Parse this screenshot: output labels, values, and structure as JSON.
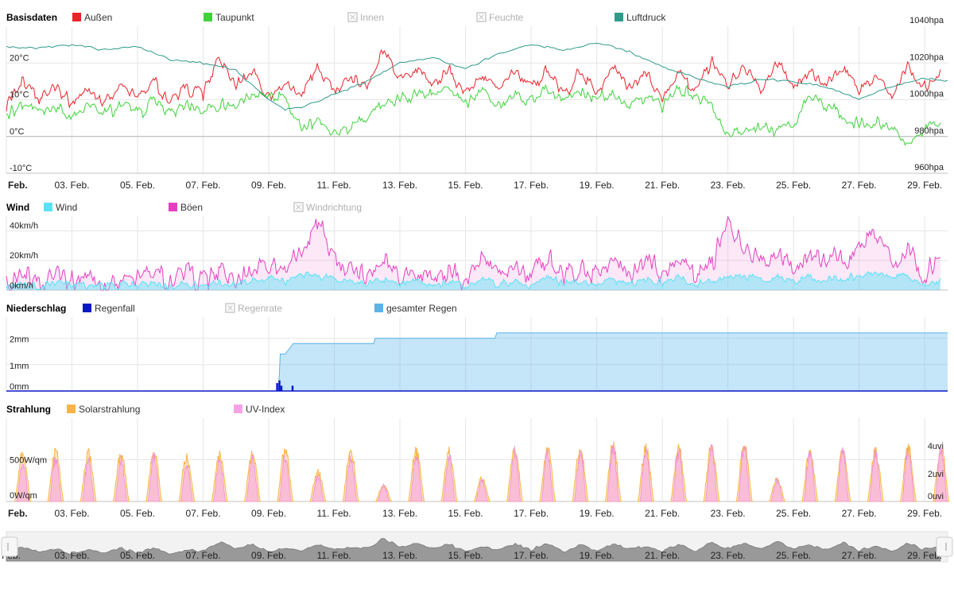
{
  "colors": {
    "aussen": "#e8232a",
    "taupunkt": "#3fd23b",
    "luftdruck": "#2f9a8a",
    "wind": "#5be3f5",
    "boeen": "#e43fc1",
    "regenfall": "#0a17c9",
    "gesamt": "#5ab4ea",
    "solar": "#f9b446",
    "uv": "#f6a3e6",
    "disabled": "#c8c8c8",
    "grid": "#e6e6e6"
  },
  "x_axis": {
    "ticks": [
      "Feb.",
      "03. Feb.",
      "05. Feb.",
      "07. Feb.",
      "09. Feb.",
      "11. Feb.",
      "13. Feb.",
      "15. Feb.",
      "17. Feb.",
      "19. Feb.",
      "21. Feb.",
      "23. Feb.",
      "25. Feb.",
      "27. Feb.",
      "29. Feb."
    ],
    "start_day": 1,
    "end_day": 29.7
  },
  "chart_data": [
    {
      "type": "line",
      "title": "Basisdaten",
      "legend": [
        {
          "name": "Außen",
          "color": "#e8232a",
          "enabled": true
        },
        {
          "name": "Taupunkt",
          "color": "#3fd23b",
          "enabled": true
        },
        {
          "name": "Innen",
          "enabled": false
        },
        {
          "name": "Feuchte",
          "enabled": false
        },
        {
          "name": "Luftdruck",
          "color": "#2f9a8a",
          "enabled": true
        }
      ],
      "y_left": {
        "ticks": [
          -10,
          0,
          10,
          20
        ],
        "labels": [
          "-10°C",
          "0°C",
          "10°C",
          "20°C"
        ],
        "range": [
          -10,
          30
        ]
      },
      "y_right": {
        "ticks": [
          960,
          980,
          1000,
          1020,
          1040
        ],
        "labels": [
          "960hpa",
          "980hpa",
          "1000hpa",
          "1020hpa",
          "1040hpa"
        ],
        "range": [
          960,
          1040
        ]
      },
      "series": [
        {
          "name": "Außen",
          "axis": "left",
          "color": "#e8232a",
          "x": [
            1,
            1.5,
            2,
            2.5,
            3,
            3.5,
            4,
            4.5,
            5,
            5.5,
            6,
            6.5,
            7,
            7.5,
            8,
            8.5,
            9,
            9.5,
            10,
            10.5,
            11,
            11.5,
            12,
            12.5,
            13,
            13.5,
            14,
            14.5,
            15,
            15.5,
            16,
            16.5,
            17,
            17.5,
            18,
            18.5,
            19,
            19.5,
            20,
            20.5,
            21,
            21.5,
            22,
            22.5,
            23,
            23.5,
            24,
            24.5,
            25,
            25.5,
            26,
            26.5,
            27,
            27.5,
            28,
            28.5,
            29,
            29.5
          ],
          "y": [
            9,
            15,
            11,
            14,
            9,
            13,
            10,
            14,
            10,
            15,
            9,
            13,
            12,
            21,
            14,
            18,
            11,
            14,
            12,
            18,
            13,
            16,
            14,
            24,
            16,
            19,
            14,
            18,
            12,
            16,
            13,
            18,
            13,
            19,
            11,
            18,
            12,
            19,
            13,
            17,
            11,
            18,
            12,
            20,
            14,
            19,
            13,
            20,
            14,
            18,
            13,
            20,
            12,
            16,
            12,
            19,
            13,
            17
          ]
        },
        {
          "name": "Taupunkt",
          "axis": "left",
          "color": "#3fd23b",
          "x": [
            1,
            1.5,
            2,
            2.5,
            3,
            3.5,
            4,
            4.5,
            5,
            5.5,
            6,
            6.5,
            7,
            7.5,
            8,
            8.5,
            9,
            9.5,
            10,
            10.5,
            11,
            11.5,
            12,
            12.5,
            13,
            13.5,
            14,
            14.5,
            15,
            15.5,
            16,
            16.5,
            17,
            17.5,
            18,
            18.5,
            19,
            19.5,
            20,
            20.5,
            21,
            21.5,
            22,
            22.5,
            23,
            23.5,
            24,
            24.5,
            25,
            25.5,
            26,
            26.5,
            27,
            27.5,
            28,
            28.5,
            29,
            29.5
          ],
          "y": [
            6,
            9,
            7,
            9,
            5,
            8,
            6,
            9,
            6,
            10,
            6,
            9,
            7,
            9,
            8,
            12,
            10,
            11,
            2,
            5,
            1,
            3,
            6,
            9,
            10,
            12,
            11,
            13,
            9,
            12,
            9,
            11,
            10,
            13,
            10,
            12,
            10,
            12,
            9,
            11,
            8,
            13,
            11,
            9,
            0,
            2,
            3,
            1,
            4,
            11,
            8,
            6,
            3,
            4,
            2,
            -3,
            1,
            4
          ]
        },
        {
          "name": "Luftdruck",
          "axis": "right",
          "color": "#2f9a8a",
          "x": [
            1,
            2,
            3,
            4,
            5,
            6,
            7,
            8,
            9,
            9.5,
            10,
            11,
            12,
            13,
            14,
            15,
            16,
            17,
            18,
            19,
            20,
            21,
            22,
            23,
            24,
            25,
            26,
            27,
            28,
            29,
            29.7
          ],
          "y": [
            1029,
            1028,
            1030,
            1027,
            1029,
            1022,
            1020,
            1016,
            1000,
            995,
            996,
            1003,
            1010,
            1020,
            1023,
            1017,
            1025,
            1030,
            1027,
            1031,
            1026,
            1018,
            1012,
            1007,
            1011,
            1010,
            1007,
            1000,
            1007,
            1012,
            1010
          ]
        }
      ]
    },
    {
      "type": "area",
      "title": "Wind",
      "legend": [
        {
          "name": "Wind",
          "color": "#5be3f5",
          "enabled": true
        },
        {
          "name": "Böen",
          "color": "#e43fc1",
          "enabled": true
        },
        {
          "name": "Windrichtung",
          "enabled": false
        }
      ],
      "y_left": {
        "ticks": [
          0,
          20,
          40
        ],
        "labels": [
          "0km/h",
          "20km/h",
          "40km/h"
        ],
        "range": [
          0,
          50
        ]
      },
      "series": [
        {
          "name": "Böen",
          "color": "#e43fc1",
          "x": [
            1,
            1.5,
            2,
            2.5,
            3,
            3.5,
            4,
            4.5,
            5,
            5.5,
            6,
            6.5,
            7,
            7.5,
            8,
            8.5,
            9,
            9.5,
            10,
            10.5,
            11,
            11.5,
            12,
            12.5,
            13,
            13.5,
            14,
            14.5,
            15,
            15.5,
            16,
            16.5,
            17,
            17.5,
            18,
            18.5,
            19,
            19.5,
            20,
            20.5,
            21,
            21.5,
            22,
            22.5,
            23,
            23.5,
            24,
            24.5,
            25,
            25.5,
            26,
            26.5,
            27,
            27.5,
            28,
            28.5,
            29,
            29.5
          ],
          "y": [
            4,
            12,
            5,
            15,
            6,
            10,
            4,
            9,
            6,
            12,
            5,
            11,
            7,
            12,
            6,
            14,
            20,
            13,
            28,
            44,
            22,
            15,
            10,
            23,
            10,
            15,
            8,
            12,
            7,
            22,
            10,
            16,
            8,
            25,
            10,
            14,
            12,
            22,
            8,
            20,
            12,
            25,
            10,
            15,
            46,
            28,
            20,
            25,
            14,
            27,
            18,
            22,
            28,
            38,
            20,
            28,
            8,
            24
          ]
        },
        {
          "name": "Wind",
          "color": "#5be3f5",
          "x": [
            1,
            1.5,
            2,
            2.5,
            3,
            3.5,
            4,
            4.5,
            5,
            5.5,
            6,
            6.5,
            7,
            7.5,
            8,
            8.5,
            9,
            9.5,
            10,
            10.5,
            11,
            11.5,
            12,
            12.5,
            13,
            13.5,
            14,
            14.5,
            15,
            15.5,
            16,
            16.5,
            17,
            17.5,
            18,
            18.5,
            19,
            19.5,
            20,
            20.5,
            21,
            21.5,
            22,
            22.5,
            23,
            23.5,
            24,
            24.5,
            25,
            25.5,
            26,
            26.5,
            27,
            27.5,
            28,
            28.5,
            29,
            29.5
          ],
          "y": [
            2,
            6,
            2,
            5,
            3,
            4,
            2,
            4,
            3,
            5,
            2,
            5,
            3,
            5,
            3,
            6,
            9,
            6,
            12,
            10,
            9,
            6,
            4,
            8,
            4,
            6,
            3,
            5,
            3,
            8,
            4,
            6,
            3,
            9,
            4,
            6,
            5,
            8,
            3,
            7,
            5,
            9,
            4,
            6,
            10,
            9,
            7,
            9,
            5,
            9,
            7,
            8,
            9,
            11,
            7,
            9,
            3,
            8
          ]
        }
      ]
    },
    {
      "type": "area",
      "title": "Niederschlag",
      "legend": [
        {
          "name": "Regenfall",
          "color": "#0a17c9",
          "enabled": true
        },
        {
          "name": "Regenrate",
          "enabled": false
        },
        {
          "name": "gesamter Regen",
          "color": "#5ab4ea",
          "enabled": true
        }
      ],
      "y_left": {
        "ticks": [
          0,
          1,
          2
        ],
        "labels": [
          "0mm",
          "1mm",
          "2mm"
        ],
        "range": [
          0,
          2.8
        ]
      },
      "series": [
        {
          "name": "gesamter Regen",
          "color": "#5ab4ea",
          "step": true,
          "x": [
            1,
            9.3,
            9.35,
            9.5,
            9.75,
            12.2,
            12.25,
            15.9,
            15.95,
            29.7
          ],
          "y": [
            0,
            0,
            1.4,
            1.4,
            1.8,
            1.8,
            2.0,
            2.0,
            2.2,
            2.2
          ]
        },
        {
          "name": "Regenfall",
          "color": "#0a17c9",
          "type": "bar",
          "x": [
            9.25,
            9.32,
            9.38,
            9.72
          ],
          "y": [
            0.3,
            0.4,
            0.2,
            0.2
          ]
        }
      ]
    },
    {
      "type": "area",
      "title": "Strahlung",
      "legend": [
        {
          "name": "Solarstrahlung",
          "color": "#f9b446",
          "enabled": true
        },
        {
          "name": "UV-Index",
          "color": "#f6a3e6",
          "enabled": true
        }
      ],
      "y_left": {
        "ticks": [
          0,
          500
        ],
        "labels": [
          "0W/qm",
          "500W/qm"
        ],
        "range": [
          0,
          1000
        ]
      },
      "y_right": {
        "ticks": [
          0,
          2,
          4
        ],
        "labels": [
          "0uvi",
          "2uvi",
          "4uvi"
        ],
        "range": [
          0,
          6
        ]
      },
      "series": [
        {
          "name": "Solarstrahlung",
          "color": "#f9b446",
          "daily_peak_day": [
            1.5,
            2.5,
            3.5,
            4.5,
            5.5,
            6.5,
            7.5,
            8.5,
            9.5,
            10.5,
            11.5,
            12.5,
            13.5,
            14.5,
            15.5,
            16.5,
            17.5,
            18.5,
            19.5,
            20.5,
            21.5,
            22.5,
            23.5,
            24.5,
            25.5,
            26.5,
            27.5,
            28.5,
            29.5
          ],
          "daily_peak": [
            560,
            590,
            560,
            570,
            600,
            530,
            570,
            570,
            600,
            350,
            600,
            190,
            600,
            590,
            270,
            620,
            600,
            610,
            650,
            630,
            620,
            650,
            660,
            260,
            580,
            610,
            590,
            630,
            640
          ]
        },
        {
          "name": "UV-Index",
          "color": "#f6a3e6",
          "daily_peak_day": [
            1.5,
            2.5,
            3.5,
            4.5,
            5.5,
            6.5,
            7.5,
            8.5,
            9.5,
            10.5,
            11.5,
            12.5,
            13.5,
            14.5,
            15.5,
            16.5,
            17.5,
            18.5,
            19.5,
            20.5,
            21.5,
            22.5,
            23.5,
            24.5,
            25.5,
            26.5,
            27.5,
            28.5,
            29.5
          ],
          "daily_peak": [
            2.8,
            3.0,
            2.9,
            3.0,
            3.2,
            2.7,
            3.0,
            3.0,
            3.2,
            1.8,
            3.2,
            1.1,
            3.2,
            3.2,
            1.5,
            3.5,
            3.4,
            3.5,
            3.8,
            3.6,
            3.6,
            3.8,
            3.9,
            1.5,
            3.4,
            3.6,
            3.5,
            3.8,
            3.8
          ]
        }
      ]
    }
  ]
}
